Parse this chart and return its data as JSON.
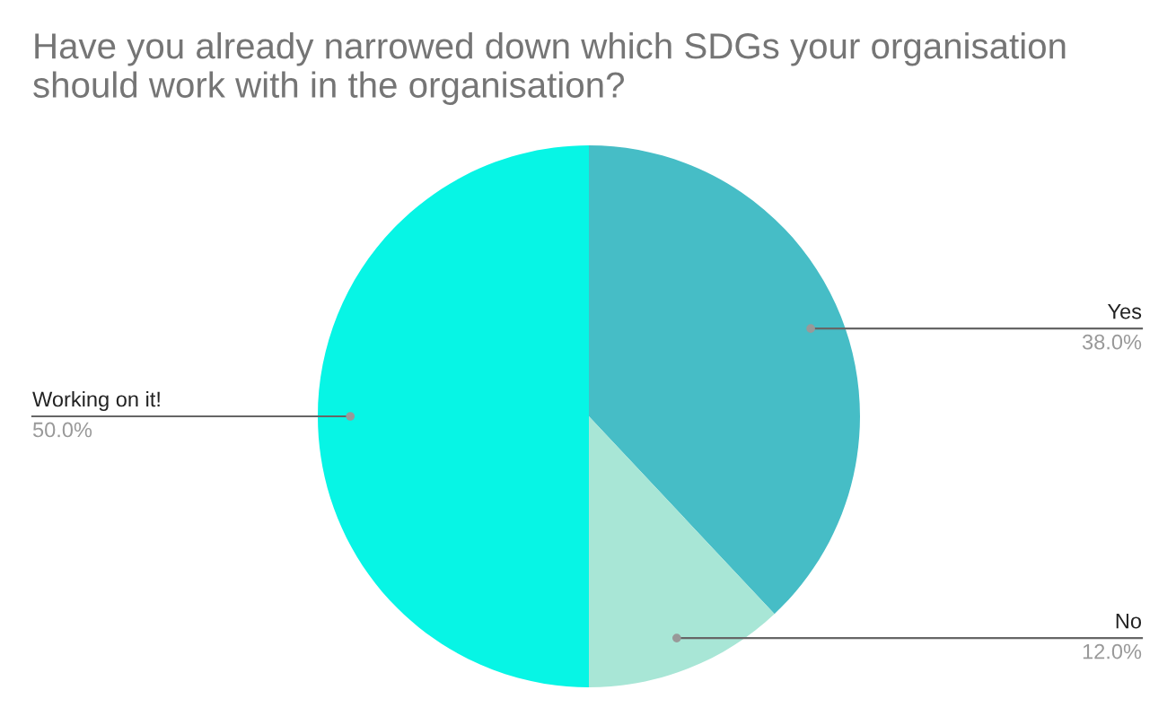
{
  "chart_data": {
    "type": "pie",
    "title": "Have you already narrowed down which SDGs your organisation should work with in the organisation?",
    "categories": [
      "Yes",
      "No",
      "Working on it!"
    ],
    "values": [
      38,
      12,
      50
    ],
    "value_labels": [
      "38.0%",
      "12.0%",
      "50.0%"
    ],
    "colors": [
      "#46bdc6",
      "#a8e6d6",
      "#07f5e5"
    ],
    "legend": false
  }
}
